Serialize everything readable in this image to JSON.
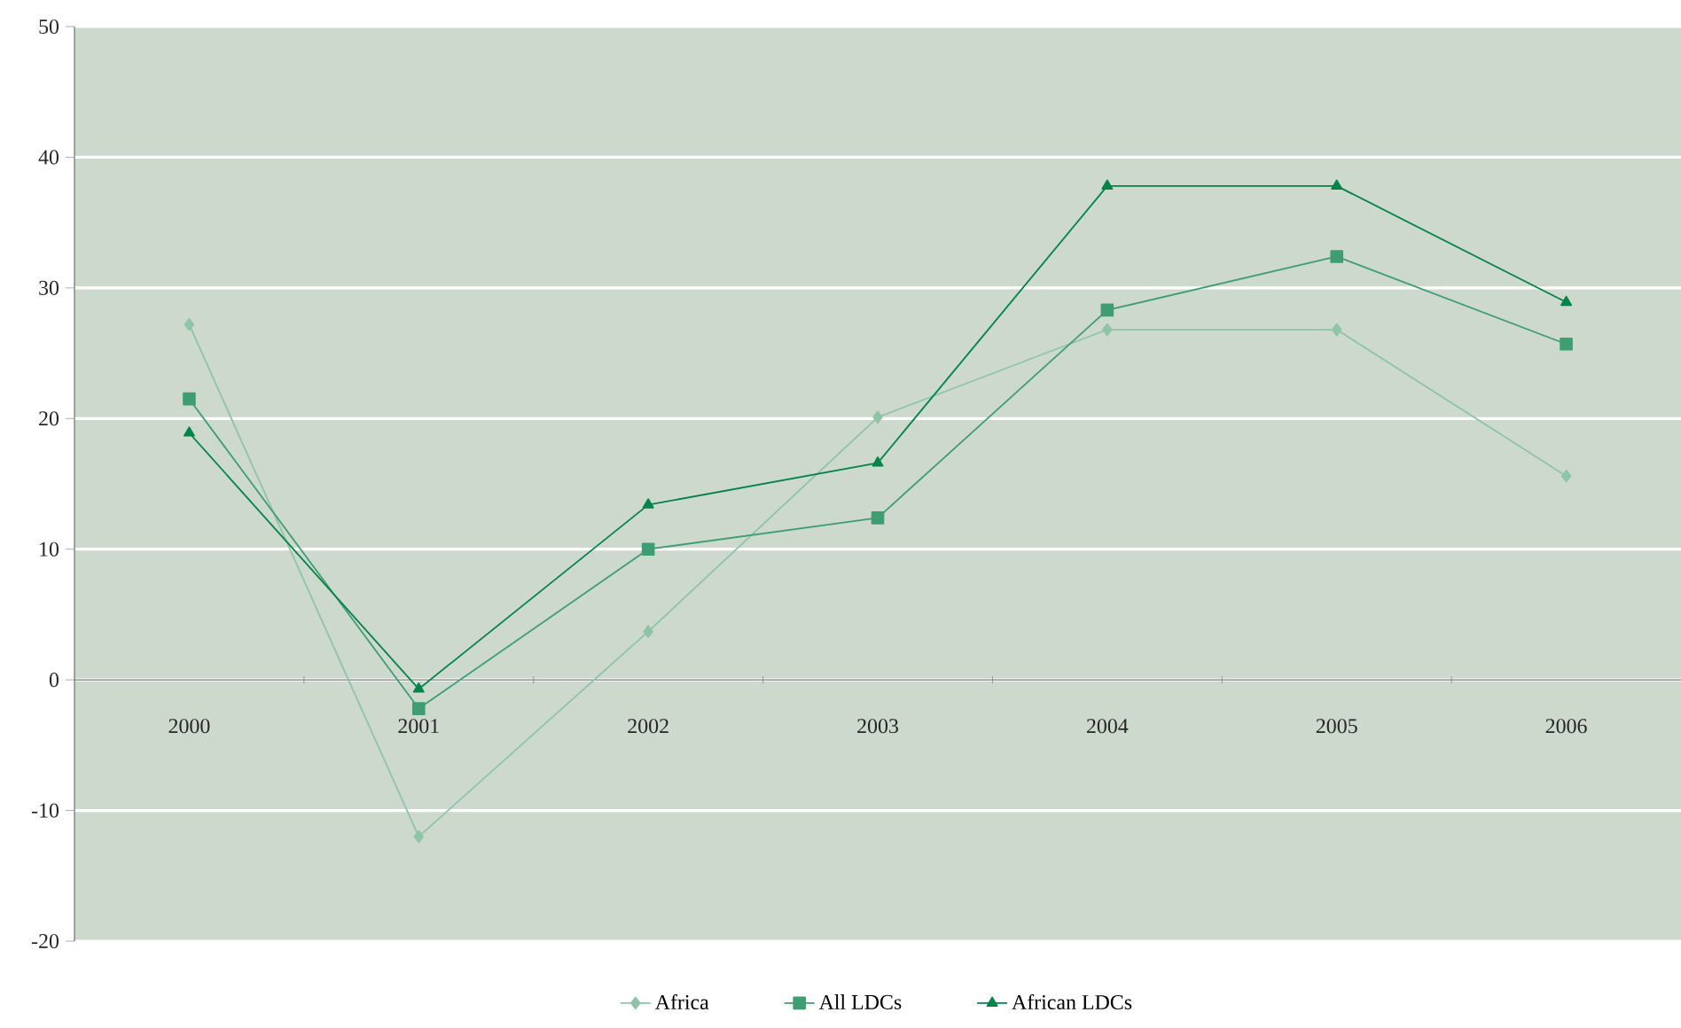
{
  "chart_data": {
    "type": "line",
    "categories": [
      "2000",
      "2001",
      "2002",
      "2003",
      "2004",
      "2005",
      "2006"
    ],
    "series": [
      {
        "name": "Africa",
        "color": "#8fc4a6",
        "marker": "diamond",
        "values": [
          27.2,
          -12.0,
          3.7,
          20.1,
          26.8,
          26.8,
          15.6
        ]
      },
      {
        "name": "All LDCs",
        "color": "#3e9e72",
        "marker": "square",
        "values": [
          21.5,
          -2.2,
          10.0,
          12.4,
          28.3,
          32.4,
          25.7
        ]
      },
      {
        "name": "African LDCs",
        "color": "#00844a",
        "marker": "triangle",
        "values": [
          18.9,
          -0.7,
          13.4,
          16.6,
          37.8,
          37.8,
          28.9
        ]
      }
    ],
    "ylim": [
      -20,
      50
    ],
    "yticks": [
      -20,
      -10,
      0,
      10,
      20,
      30,
      40,
      50
    ],
    "grid": "y",
    "legend": "bottom",
    "line_style": "solid"
  }
}
